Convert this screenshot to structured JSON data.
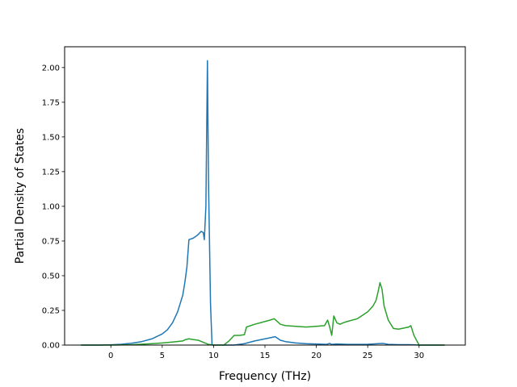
{
  "chart_data": {
    "type": "line",
    "title": "",
    "xlabel": "Frequency (THz)",
    "ylabel": "Partial Density of States",
    "xlim": [
      -4.5,
      34.5
    ],
    "ylim": [
      0.0,
      2.15
    ],
    "xticks": [
      0,
      5,
      10,
      15,
      20,
      25,
      30
    ],
    "xtick_labels": [
      "0",
      "5",
      "10",
      "15",
      "20",
      "25",
      "30"
    ],
    "yticks": [
      0.0,
      0.25,
      0.5,
      0.75,
      1.0,
      1.25,
      1.5,
      1.75,
      2.0
    ],
    "ytick_labels": [
      "0.00",
      "0.25",
      "0.50",
      "0.75",
      "1.00",
      "1.25",
      "1.50",
      "1.75",
      "2.00"
    ],
    "grid": false,
    "legend": "none",
    "series": [
      {
        "color": "#1f77b4",
        "x": [
          -2.9,
          -1.0,
          0.0,
          1.0,
          2.0,
          3.0,
          4.0,
          5.0,
          5.5,
          6.0,
          6.5,
          7.0,
          7.2,
          7.4,
          7.6,
          8.0,
          8.4,
          8.8,
          9.0,
          9.1,
          9.25,
          9.4,
          9.5,
          9.7,
          9.85,
          10.5,
          11.0,
          12.0,
          13.0,
          14.0,
          15.0,
          16.0,
          16.5,
          17.0,
          18.0,
          19.0,
          20.0,
          21.0,
          21.3,
          21.5,
          22.0,
          23.0,
          24.0,
          25.0,
          26.0,
          26.5,
          27.0,
          28.0,
          29.0,
          30.0,
          32.5
        ],
        "y": [
          0.0,
          0.0,
          0.002,
          0.006,
          0.013,
          0.025,
          0.045,
          0.08,
          0.11,
          0.16,
          0.24,
          0.36,
          0.45,
          0.56,
          0.76,
          0.77,
          0.79,
          0.82,
          0.81,
          0.76,
          1.0,
          2.05,
          1.2,
          0.3,
          0.0,
          0.0,
          0.0,
          0.0,
          0.01,
          0.03,
          0.045,
          0.06,
          0.035,
          0.025,
          0.015,
          0.01,
          0.008,
          0.005,
          0.012,
          0.005,
          0.008,
          0.005,
          0.005,
          0.006,
          0.01,
          0.012,
          0.005,
          0.003,
          0.003,
          0.0,
          0.0
        ]
      },
      {
        "color": "#2ca02c",
        "x": [
          -2.9,
          0.0,
          2.0,
          4.0,
          5.0,
          6.0,
          7.0,
          7.3,
          7.6,
          8.0,
          8.5,
          9.0,
          9.5,
          10.0,
          11.0,
          11.5,
          12.0,
          12.5,
          13.0,
          13.2,
          14.0,
          15.0,
          15.5,
          15.9,
          16.2,
          16.5,
          17.0,
          18.0,
          19.0,
          20.0,
          20.8,
          21.1,
          21.3,
          21.5,
          21.7,
          22.0,
          22.3,
          22.6,
          23.0,
          24.0,
          25.0,
          25.5,
          25.8,
          26.0,
          26.2,
          26.4,
          26.6,
          27.0,
          27.5,
          28.0,
          29.0,
          29.2,
          29.5,
          30.0,
          32.5
        ],
        "y": [
          0.0,
          0.0,
          0.002,
          0.01,
          0.015,
          0.022,
          0.03,
          0.04,
          0.045,
          0.04,
          0.035,
          0.02,
          0.005,
          0.0,
          0.0,
          0.03,
          0.07,
          0.07,
          0.075,
          0.13,
          0.15,
          0.17,
          0.18,
          0.19,
          0.17,
          0.15,
          0.14,
          0.135,
          0.13,
          0.135,
          0.14,
          0.18,
          0.13,
          0.07,
          0.21,
          0.16,
          0.15,
          0.16,
          0.17,
          0.19,
          0.24,
          0.28,
          0.32,
          0.38,
          0.45,
          0.4,
          0.28,
          0.18,
          0.12,
          0.115,
          0.13,
          0.14,
          0.07,
          0.0,
          0.0
        ]
      }
    ]
  }
}
